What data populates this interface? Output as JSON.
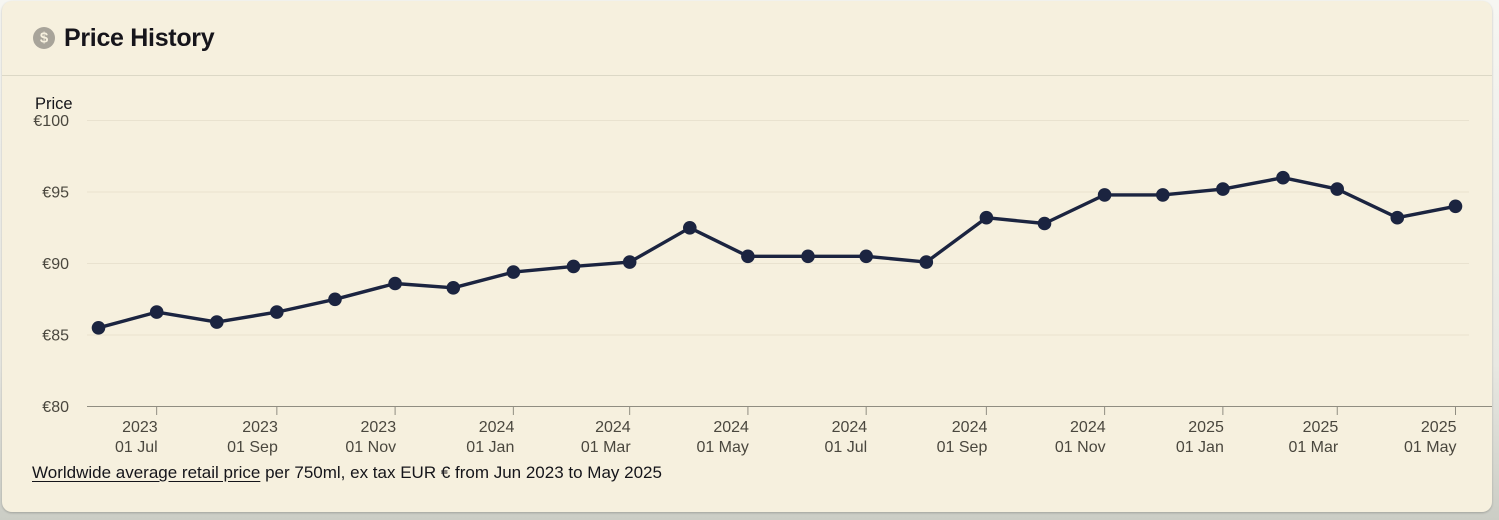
{
  "header": {
    "title": "Price History",
    "icon": "dollar-circle-icon",
    "icon_glyph": "$"
  },
  "footer": {
    "link_text": "Worldwide average retail price",
    "rest_text": " per 750ml, ex tax EUR € from Jun 2023 to May 2025"
  },
  "chart_data": {
    "type": "line",
    "title": "Price History",
    "ylabel": "Price",
    "xlabel": "",
    "currency": "EUR €",
    "period": "Jun 2023 to May 2025",
    "ylim": [
      80,
      100
    ],
    "grid": true,
    "legend": "none",
    "points": [
      {
        "date": "2023-06-01",
        "label": "Jun 2023",
        "value": 85.5
      },
      {
        "date": "2023-07-01",
        "label": "Jul 2023",
        "value": 86.6
      },
      {
        "date": "2023-08-01",
        "label": "Aug 2023",
        "value": 85.9
      },
      {
        "date": "2023-09-01",
        "label": "Sep 2023",
        "value": 86.6
      },
      {
        "date": "2023-10-01",
        "label": "Oct 2023",
        "value": 87.5
      },
      {
        "date": "2023-11-01",
        "label": "Nov 2023",
        "value": 88.6
      },
      {
        "date": "2023-12-01",
        "label": "Dec 2023",
        "value": 88.3
      },
      {
        "date": "2024-01-01",
        "label": "Jan 2024",
        "value": 89.4
      },
      {
        "date": "2024-02-01",
        "label": "Feb 2024",
        "value": 89.8
      },
      {
        "date": "2024-03-01",
        "label": "Mar 2024",
        "value": 90.1
      },
      {
        "date": "2024-04-01",
        "label": "Apr 2024",
        "value": 92.5
      },
      {
        "date": "2024-05-01",
        "label": "May 2024",
        "value": 90.5
      },
      {
        "date": "2024-06-01",
        "label": "Jun 2024",
        "value": 90.5
      },
      {
        "date": "2024-07-01",
        "label": "Jul 2024",
        "value": 90.5
      },
      {
        "date": "2024-08-01",
        "label": "Aug 2024",
        "value": 90.1
      },
      {
        "date": "2024-09-01",
        "label": "Sep 2024",
        "value": 93.2
      },
      {
        "date": "2024-10-01",
        "label": "Oct 2024",
        "value": 92.8
      },
      {
        "date": "2024-11-01",
        "label": "Nov 2024",
        "value": 94.8
      },
      {
        "date": "2024-12-01",
        "label": "Dec 2024",
        "value": 94.8
      },
      {
        "date": "2025-01-01",
        "label": "Jan 2025",
        "value": 95.2
      },
      {
        "date": "2025-02-01",
        "label": "Feb 2025",
        "value": 96.0
      },
      {
        "date": "2025-03-01",
        "label": "Mar 2025",
        "value": 95.2
      },
      {
        "date": "2025-04-01",
        "label": "Apr 2025",
        "value": 93.2
      },
      {
        "date": "2025-05-01",
        "label": "May 2025",
        "value": 94.0
      }
    ],
    "y_ticks": [
      {
        "value": 100,
        "label": "€100"
      },
      {
        "value": 95,
        "label": "€95"
      },
      {
        "value": 90,
        "label": "€90"
      },
      {
        "value": 85,
        "label": "€85"
      },
      {
        "value": 80,
        "label": "€80"
      }
    ],
    "x_ticks": [
      {
        "date": "2023-07-01",
        "line1": "2023",
        "line2": "01 Jul"
      },
      {
        "date": "2023-09-01",
        "line1": "2023",
        "line2": "01 Sep"
      },
      {
        "date": "2023-11-01",
        "line1": "2023",
        "line2": "01 Nov"
      },
      {
        "date": "2024-01-01",
        "line1": "2024",
        "line2": "01 Jan"
      },
      {
        "date": "2024-03-01",
        "line1": "2024",
        "line2": "01 Mar"
      },
      {
        "date": "2024-05-01",
        "line1": "2024",
        "line2": "01 May"
      },
      {
        "date": "2024-07-01",
        "line1": "2024",
        "line2": "01 Jul"
      },
      {
        "date": "2024-09-01",
        "line1": "2024",
        "line2": "01 Sep"
      },
      {
        "date": "2024-11-01",
        "line1": "2024",
        "line2": "01 Nov"
      },
      {
        "date": "2025-01-01",
        "line1": "2025",
        "line2": "01 Jan"
      },
      {
        "date": "2025-03-01",
        "line1": "2025",
        "line2": "01 Mar"
      },
      {
        "date": "2025-05-01",
        "line1": "2025",
        "line2": "01 May"
      }
    ],
    "colors": {
      "line": "#1b2440",
      "grid": "#e9e2cf",
      "axis": "#908d81",
      "tick_text": "#4a473e",
      "axis_title_text": "#15151a",
      "background": "#f6f0de"
    }
  }
}
